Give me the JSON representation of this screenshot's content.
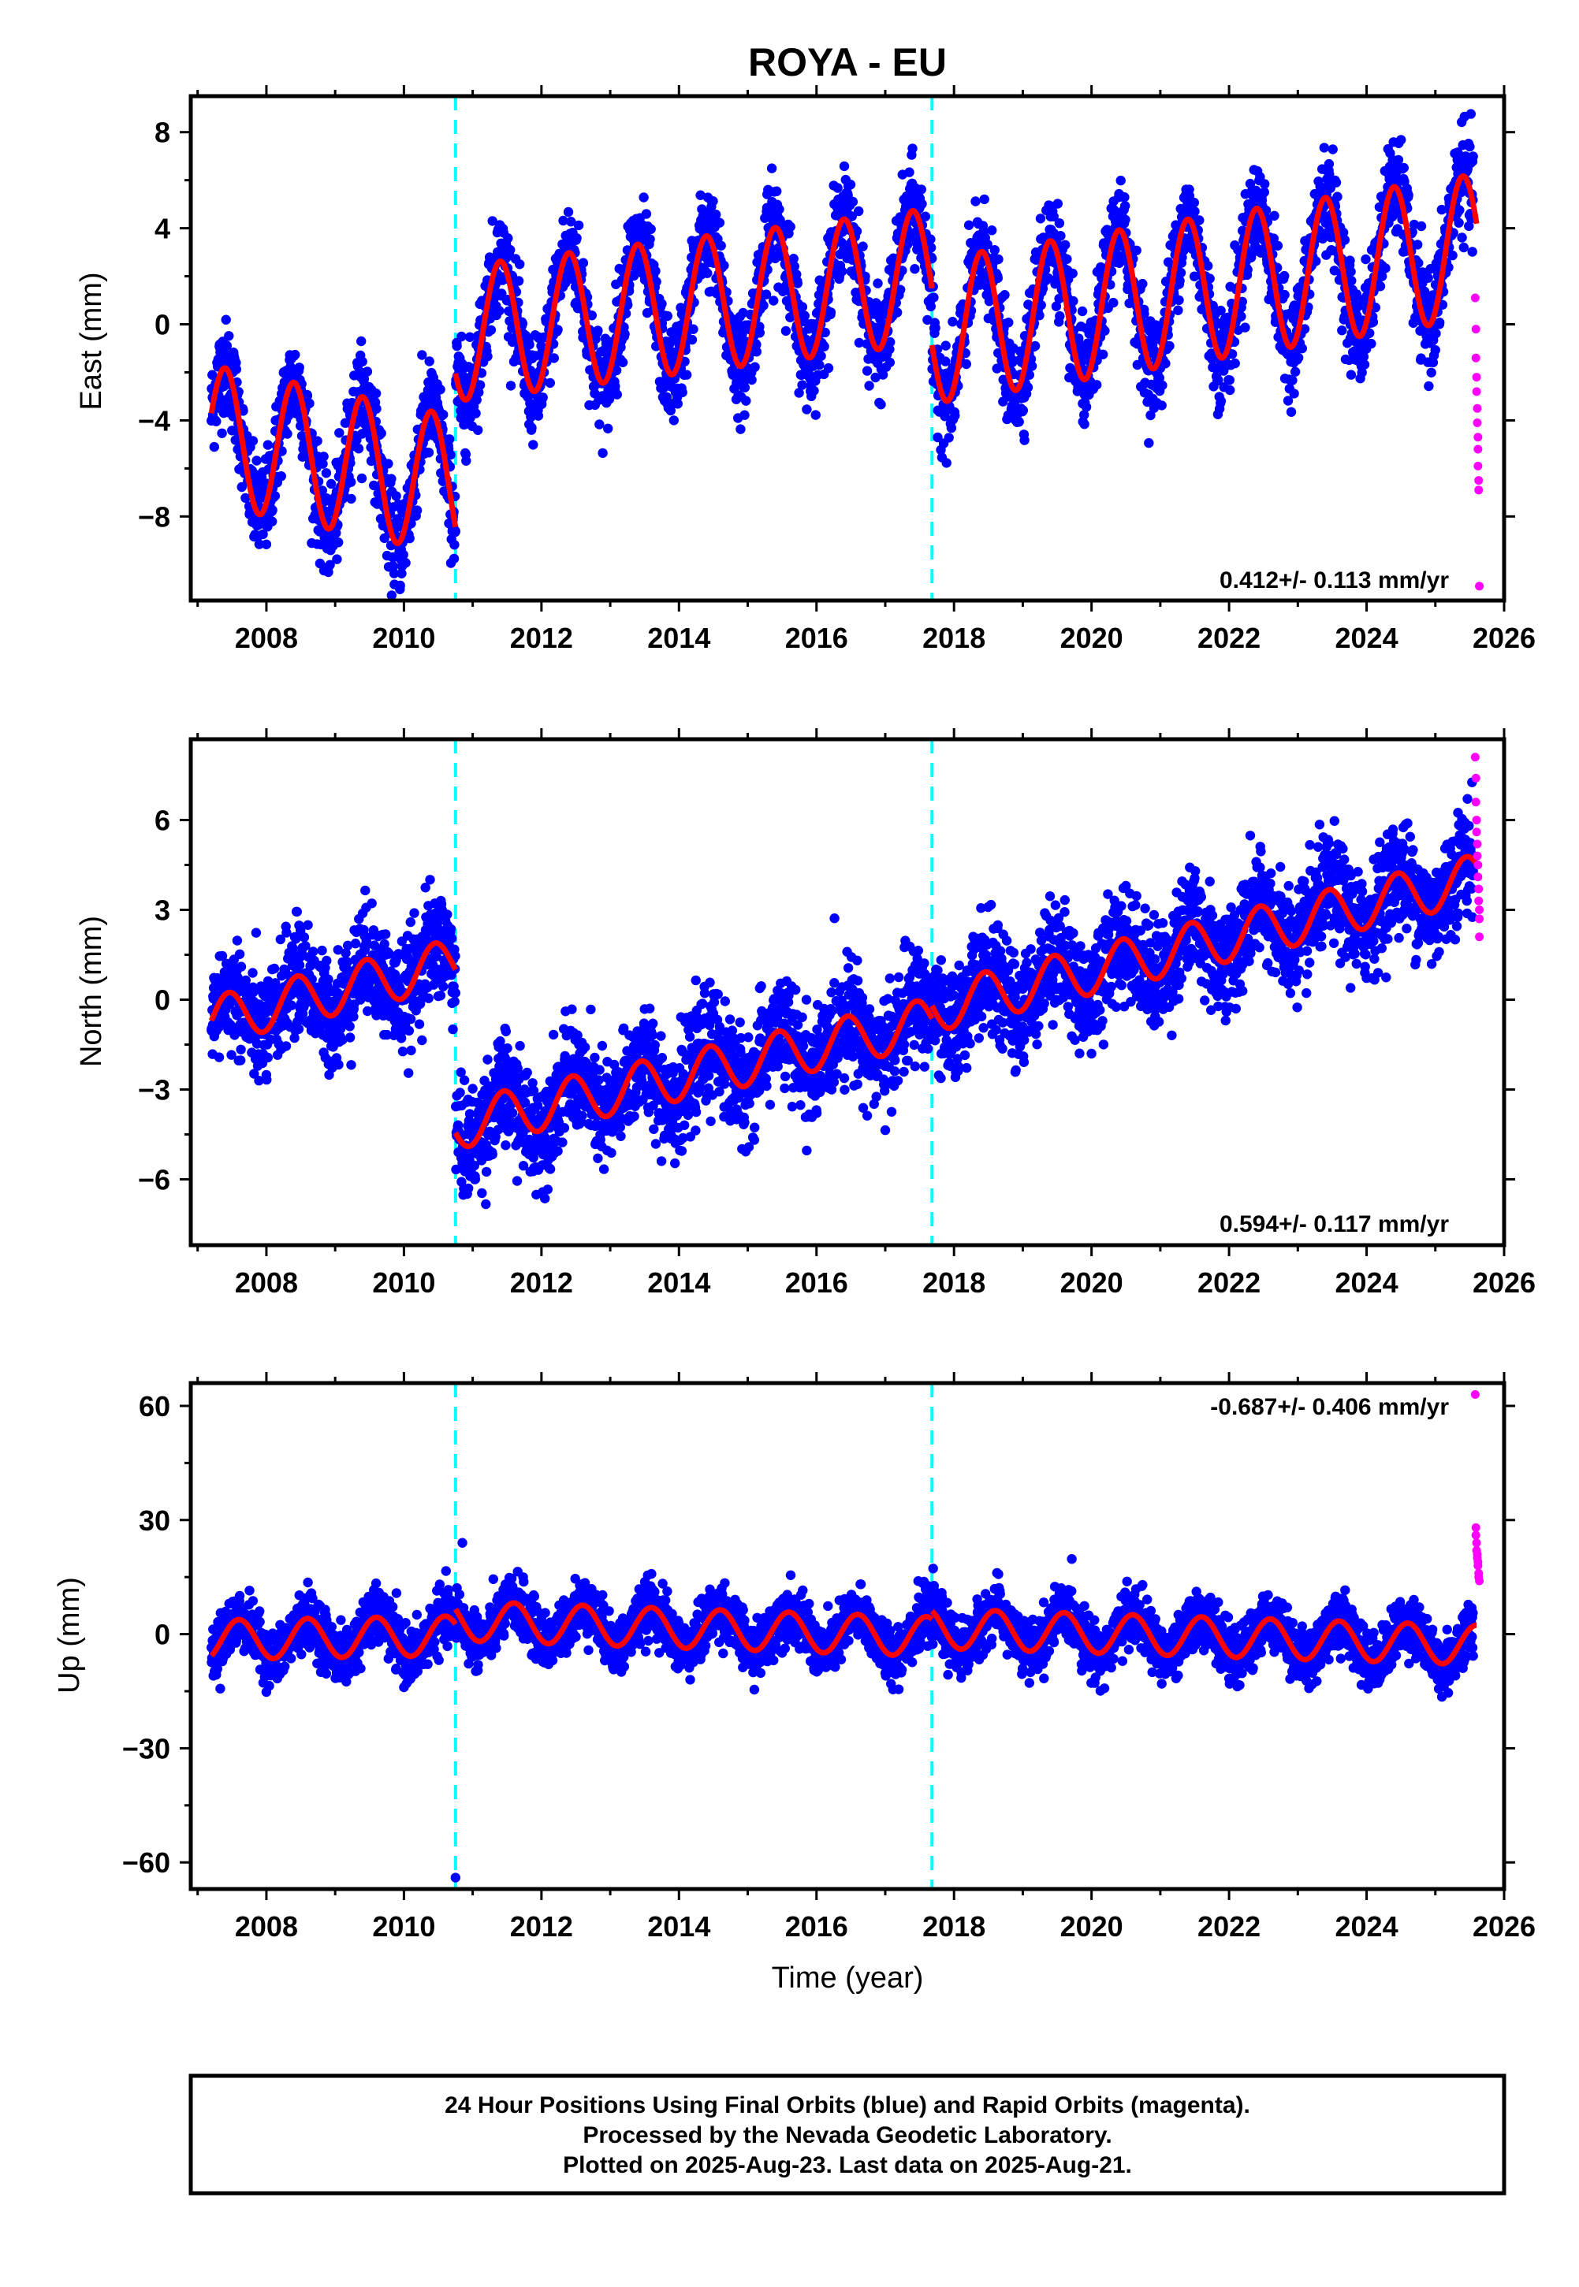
{
  "chart_data": [
    {
      "type": "scatter",
      "title": "ROYA - EU",
      "xlabel": "",
      "ylabel": "East (mm)",
      "xlim": [
        2006.9,
        2026.0
      ],
      "ylim": [
        -11.5,
        9.5
      ],
      "x_ticks": [
        2008,
        2010,
        2012,
        2014,
        2016,
        2018,
        2020,
        2022,
        2024,
        2026
      ],
      "x_tick_labels": [
        "2008",
        "2010",
        "2012",
        "2014",
        "2016",
        "2018",
        "2020",
        "2022",
        "2024",
        "2026"
      ],
      "y_ticks": [
        -8,
        -4,
        0,
        4,
        8
      ],
      "y_tick_labels": [
        "-8",
        "-4",
        "0",
        "4",
        "8"
      ],
      "rate_label": "0.412+/- 0.113 mm/yr",
      "rate_label_position": "bottom-right",
      "breaks": [
        2010.75,
        2017.68
      ],
      "final_orbits": {
        "color": "#0000ff",
        "data_range": [
          2007.2,
          2025.55
        ],
        "segments": [
          {
            "from": 2007.2,
            "to": 2010.75,
            "offset": -4.6,
            "rate": -0.6,
            "amplitude": 2.9,
            "peak_phase": 0.4
          },
          {
            "from": 2010.75,
            "to": 2017.68,
            "offset": -0.4,
            "rate": 0.35,
            "amplitude": 2.8,
            "peak_phase": 0.4
          },
          {
            "from": 2017.68,
            "to": 2025.6,
            "offset": -0.3,
            "rate": 0.45,
            "amplitude": 3.0,
            "peak_phase": 0.4
          }
        ],
        "scatter_sd": 1.0
      },
      "rapid_orbits": {
        "color": "#ff00ff",
        "x": [
          2025.58,
          2025.59,
          2025.59,
          2025.6,
          2025.6,
          2025.61,
          2025.61,
          2025.62,
          2025.62,
          2025.62,
          2025.63,
          2025.63,
          2025.64
        ],
        "y": [
          1.1,
          -0.2,
          -1.4,
          -2.2,
          -2.8,
          -3.5,
          -4.1,
          -4.7,
          -5.2,
          -5.9,
          -6.5,
          -6.9,
          -10.9
        ]
      },
      "model_color": "#ff0000"
    },
    {
      "type": "scatter",
      "title": "",
      "xlabel": "",
      "ylabel": "North (mm)",
      "xlim": [
        2006.9,
        2026.0
      ],
      "ylim": [
        -8.2,
        8.7
      ],
      "x_ticks": [
        2008,
        2010,
        2012,
        2014,
        2016,
        2018,
        2020,
        2022,
        2024,
        2026
      ],
      "x_tick_labels": [
        "2008",
        "2010",
        "2012",
        "2014",
        "2016",
        "2018",
        "2020",
        "2022",
        "2024",
        "2026"
      ],
      "y_ticks": [
        -6,
        -3,
        0,
        3,
        6
      ],
      "y_tick_labels": [
        "-6",
        "-3",
        "0",
        "3",
        "6"
      ],
      "rate_label": "0.594+/- 0.117 mm/yr",
      "rate_label_position": "bottom-right",
      "breaks": [
        2010.75,
        2017.68
      ],
      "final_orbits": {
        "color": "#0000ff",
        "data_range": [
          2007.2,
          2025.55
        ],
        "segments": [
          {
            "from": 2007.2,
            "to": 2010.75,
            "offset": -0.7,
            "rate": 0.55,
            "amplitude": 0.8,
            "peak_phase": 0.45
          },
          {
            "from": 2010.75,
            "to": 2017.68,
            "offset": -4.2,
            "rate": 0.5,
            "amplitude": 0.8,
            "peak_phase": 0.45
          },
          {
            "from": 2017.68,
            "to": 2025.6,
            "offset": -0.3,
            "rate": 0.55,
            "amplitude": 0.8,
            "peak_phase": 0.45
          }
        ],
        "scatter_sd": 0.9
      },
      "rapid_orbits": {
        "color": "#ff00ff",
        "x": [
          2025.58,
          2025.59,
          2025.59,
          2025.6,
          2025.6,
          2025.61,
          2025.61,
          2025.62,
          2025.62,
          2025.63,
          2025.63,
          2025.64,
          2025.64,
          2025.64
        ],
        "y": [
          8.1,
          7.4,
          6.6,
          6.0,
          5.6,
          5.2,
          4.8,
          4.5,
          4.1,
          3.7,
          3.3,
          3.0,
          2.7,
          2.1
        ]
      },
      "model_color": "#ff0000"
    },
    {
      "type": "scatter",
      "title": "",
      "xlabel": "Time (year)",
      "ylabel": "Up (mm)",
      "xlim": [
        2006.9,
        2026.0
      ],
      "ylim": [
        -67,
        66
      ],
      "x_ticks": [
        2008,
        2010,
        2012,
        2014,
        2016,
        2018,
        2020,
        2022,
        2024,
        2026
      ],
      "x_tick_labels": [
        "2008",
        "2010",
        "2012",
        "2014",
        "2016",
        "2018",
        "2020",
        "2022",
        "2024",
        "2026"
      ],
      "y_ticks": [
        -60,
        -30,
        0,
        30,
        60
      ],
      "y_tick_labels": [
        "-60",
        "-30",
        "0",
        "30",
        "60"
      ],
      "rate_label": "-0.687+/- 0.406 mm/yr",
      "rate_label_position": "top-right",
      "breaks": [
        2010.75,
        2017.68
      ],
      "final_orbits": {
        "color": "#0000ff",
        "data_range": [
          2007.2,
          2025.55
        ],
        "segments": [
          {
            "from": 2007.2,
            "to": 2010.75,
            "offset": -1.5,
            "rate": 0.3,
            "amplitude": 5.2,
            "peak_phase": 0.6
          },
          {
            "from": 2010.75,
            "to": 2017.68,
            "offset": 3.5,
            "rate": -0.6,
            "amplitude": 5.2,
            "peak_phase": 0.6
          },
          {
            "from": 2017.68,
            "to": 2025.6,
            "offset": 1.5,
            "rate": -0.55,
            "amplitude": 5.2,
            "peak_phase": 0.6
          }
        ],
        "scatter_sd": 3.6
      },
      "rapid_orbits": {
        "color": "#ff00ff",
        "x": [
          2025.58,
          2025.59,
          2025.59,
          2025.6,
          2025.6,
          2025.61,
          2025.61,
          2025.62,
          2025.62,
          2025.63,
          2025.63,
          2025.64
        ],
        "y": [
          63,
          28,
          26,
          24,
          22,
          21,
          20,
          19,
          18,
          16,
          15,
          14
        ]
      },
      "outliers": [
        {
          "x": 2010.75,
          "y": -64
        },
        {
          "x": 2010.85,
          "y": 24
        }
      ],
      "model_color": "#ff0000"
    }
  ],
  "footer_note": {
    "lines": [
      "24 Hour Positions Using Final Orbits (blue) and Rapid Orbits (magenta).",
      "Processed by the Nevada Geodetic Laboratory.",
      "Plotted on 2025-Aug-23. Last data on 2025-Aug-21."
    ]
  },
  "colors": {
    "final_orbits": "#0000ff",
    "rapid_orbits": "#ff00ff",
    "model": "#ff0000",
    "breaks": "#00ffff"
  }
}
